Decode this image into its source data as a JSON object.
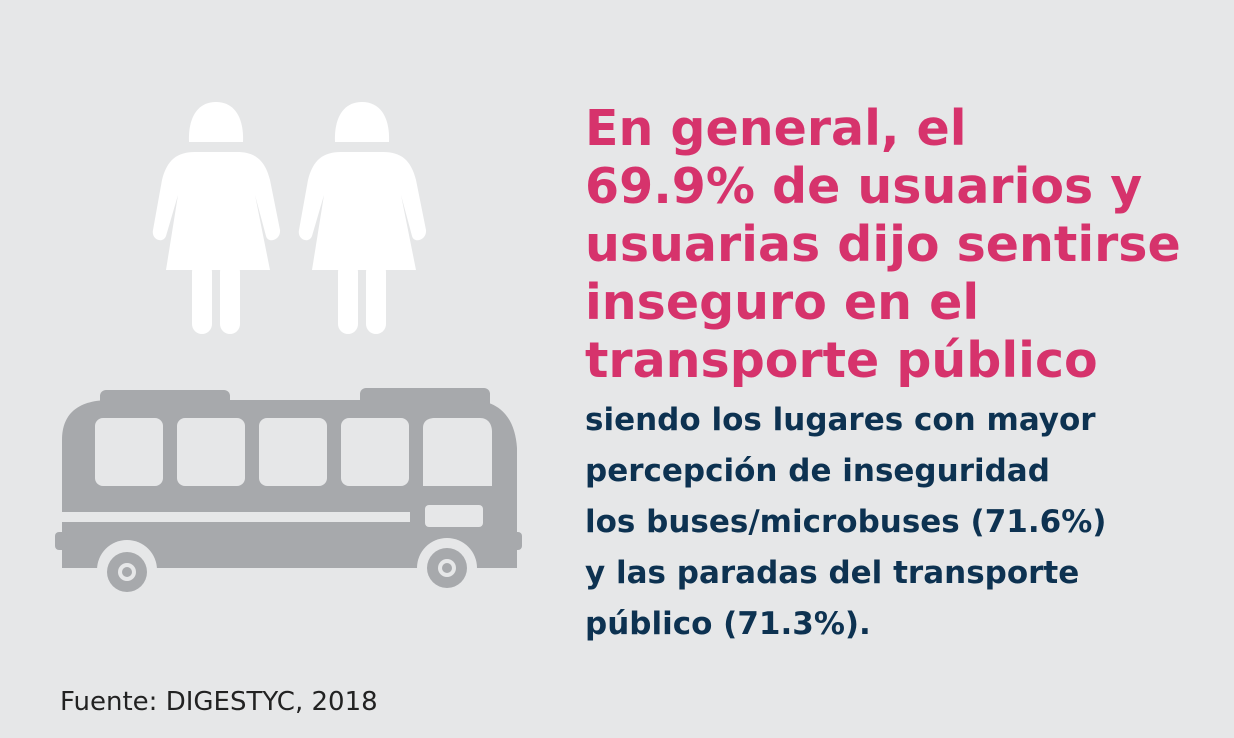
{
  "headline": "En general, el\n69.9% de usuarios y\nusuarias dijo sentirse\ninseguro en el\ntransporte público",
  "body": "siendo los lugares con mayor\npercepción de inseguridad\nlos buses/microbuses (71.6%)\ny las paradas del transporte\npúblico (71.3%).",
  "source": "Fuente: DIGESTYC, 2018",
  "colors": {
    "background": "#e6e7e8",
    "headline": "#d6336c",
    "body": "#0d3251",
    "icon_women": "#ffffff",
    "icon_bus": "#a7a9ac"
  },
  "icons": [
    "woman-icon",
    "woman-icon",
    "bus-icon"
  ]
}
